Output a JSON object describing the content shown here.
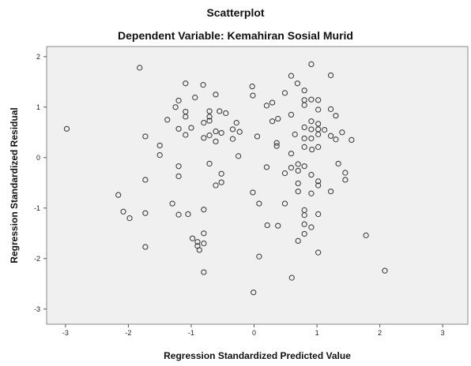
{
  "chart_data": {
    "type": "scatter",
    "title": "Scatterplot",
    "subtitle": "Dependent Variable: Kemahiran Sosial Murid",
    "xlabel": "Regression Standardized Predicted Value",
    "ylabel": "Regression Standardized Residual",
    "xlim": [
      -3.3,
      3.4
    ],
    "ylim": [
      -3.3,
      2.2
    ],
    "xticks": [
      -3,
      -2,
      -1,
      0,
      1,
      2,
      3
    ],
    "yticks": [
      -3,
      -2,
      -1,
      0,
      1,
      2
    ],
    "grid": false,
    "background": "#f0f0f0",
    "marker_color": "#333333",
    "points": [
      [
        -2.98,
        0.57
      ],
      [
        -1.82,
        1.78
      ],
      [
        -2.16,
        -0.74
      ],
      [
        -2.08,
        -1.07
      ],
      [
        -1.98,
        -1.2
      ],
      [
        -1.73,
        0.42
      ],
      [
        -1.73,
        -0.44
      ],
      [
        -1.73,
        -1.1
      ],
      [
        -1.73,
        -1.77
      ],
      [
        -1.5,
        0.24
      ],
      [
        -1.5,
        0.05
      ],
      [
        -1.38,
        0.75
      ],
      [
        -1.3,
        -0.91
      ],
      [
        -1.25,
        1.0
      ],
      [
        -1.2,
        1.13
      ],
      [
        -1.2,
        0.57
      ],
      [
        -1.2,
        -0.17
      ],
      [
        -1.2,
        -0.37
      ],
      [
        -1.2,
        -1.13
      ],
      [
        -1.09,
        1.47
      ],
      [
        -1.09,
        0.91
      ],
      [
        -1.09,
        0.81
      ],
      [
        -1.09,
        0.45
      ],
      [
        -1.05,
        -1.12
      ],
      [
        -1.0,
        0.59
      ],
      [
        -0.98,
        -1.6
      ],
      [
        -0.94,
        1.19
      ],
      [
        -0.9,
        -1.67
      ],
      [
        -0.9,
        -1.75
      ],
      [
        -0.87,
        -1.83
      ],
      [
        -0.81,
        1.44
      ],
      [
        -0.8,
        0.69
      ],
      [
        -0.8,
        0.39
      ],
      [
        -0.8,
        -1.03
      ],
      [
        -0.8,
        -1.5
      ],
      [
        -0.8,
        -1.7
      ],
      [
        -0.8,
        -2.27
      ],
      [
        -0.71,
        0.92
      ],
      [
        -0.71,
        0.81
      ],
      [
        -0.71,
        0.73
      ],
      [
        -0.71,
        0.44
      ],
      [
        -0.71,
        -0.12
      ],
      [
        -0.61,
        1.25
      ],
      [
        -0.61,
        0.52
      ],
      [
        -0.61,
        0.32
      ],
      [
        -0.61,
        -0.55
      ],
      [
        -0.55,
        0.92
      ],
      [
        -0.52,
        0.49
      ],
      [
        -0.52,
        -0.32
      ],
      [
        -0.52,
        -0.49
      ],
      [
        -0.45,
        0.88
      ],
      [
        -0.34,
        0.56
      ],
      [
        -0.34,
        0.37
      ],
      [
        -0.28,
        0.69
      ],
      [
        -0.25,
        0.03
      ],
      [
        -0.23,
        0.51
      ],
      [
        -0.03,
        1.41
      ],
      [
        -0.02,
        1.23
      ],
      [
        -0.02,
        -0.69
      ],
      [
        0.05,
        0.42
      ],
      [
        0.08,
        -0.91
      ],
      [
        0.08,
        -1.96
      ],
      [
        -0.01,
        -2.67
      ],
      [
        0.2,
        1.03
      ],
      [
        0.2,
        -0.19
      ],
      [
        0.21,
        -1.34
      ],
      [
        0.29,
        1.09
      ],
      [
        0.29,
        0.72
      ],
      [
        0.36,
        0.29
      ],
      [
        0.36,
        0.23
      ],
      [
        0.38,
        0.77
      ],
      [
        0.38,
        -1.35
      ],
      [
        0.49,
        1.28
      ],
      [
        0.49,
        -0.31
      ],
      [
        0.49,
        -0.91
      ],
      [
        0.59,
        1.62
      ],
      [
        0.59,
        0.85
      ],
      [
        0.59,
        0.08
      ],
      [
        0.59,
        -0.2
      ],
      [
        0.6,
        -2.38
      ],
      [
        0.65,
        0.46
      ],
      [
        0.69,
        1.47
      ],
      [
        0.7,
        -0.13
      ],
      [
        0.7,
        -0.26
      ],
      [
        0.7,
        -0.51
      ],
      [
        0.7,
        -0.67
      ],
      [
        0.7,
        -1.65
      ],
      [
        0.8,
        1.33
      ],
      [
        0.8,
        1.14
      ],
      [
        0.8,
        1.04
      ],
      [
        0.8,
        0.6
      ],
      [
        0.8,
        0.38
      ],
      [
        0.8,
        0.21
      ],
      [
        0.8,
        -0.17
      ],
      [
        0.8,
        -1.04
      ],
      [
        0.8,
        -1.14
      ],
      [
        0.8,
        -1.32
      ],
      [
        0.8,
        -1.51
      ],
      [
        0.91,
        1.85
      ],
      [
        0.91,
        1.15
      ],
      [
        0.91,
        0.72
      ],
      [
        0.91,
        0.56
      ],
      [
        0.91,
        0.38
      ],
      [
        0.91,
        -0.34
      ],
      [
        0.91,
        -0.71
      ],
      [
        0.91,
        -1.38
      ],
      [
        0.92,
        0.16
      ],
      [
        1.02,
        1.14
      ],
      [
        1.02,
        0.95
      ],
      [
        1.02,
        0.67
      ],
      [
        1.02,
        0.56
      ],
      [
        1.02,
        0.46
      ],
      [
        1.02,
        0.21
      ],
      [
        1.02,
        -0.47
      ],
      [
        1.02,
        -0.55
      ],
      [
        1.02,
        -1.12
      ],
      [
        1.02,
        -1.88
      ],
      [
        1.12,
        0.55
      ],
      [
        1.22,
        1.63
      ],
      [
        1.22,
        0.96
      ],
      [
        1.22,
        0.43
      ],
      [
        1.22,
        -0.67
      ],
      [
        1.3,
        0.36
      ],
      [
        1.3,
        0.83
      ],
      [
        1.34,
        -0.12
      ],
      [
        1.4,
        0.5
      ],
      [
        1.45,
        -0.3
      ],
      [
        1.45,
        -0.44
      ],
      [
        1.55,
        0.35
      ],
      [
        1.78,
        -1.54
      ],
      [
        2.08,
        -2.24
      ]
    ]
  }
}
